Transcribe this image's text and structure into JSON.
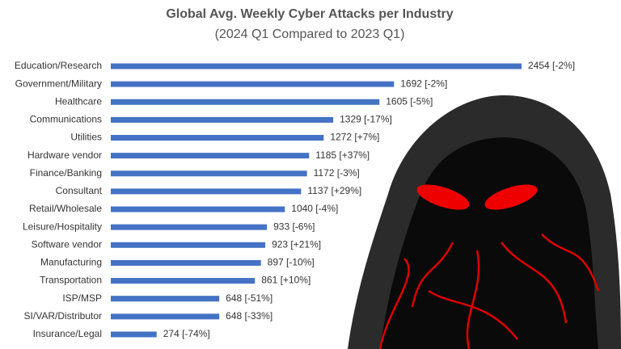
{
  "chart_data": {
    "type": "bar",
    "orientation": "horizontal",
    "title": "Global Avg. Weekly Cyber Attacks per Industry",
    "subtitle": "(2024 Q1 Compared to 2023 Q1)",
    "categories": [
      "Education/Research",
      "Government/Military",
      "Healthcare",
      "Communications",
      "Utilities",
      "Hardware vendor",
      "Finance/Banking",
      "Consultant",
      "Retail/Wholesale",
      "Leisure/Hospitality",
      "Software vendor",
      "Manufacturing",
      "Transportation",
      "ISP/MSP",
      "SI/VAR/Distributor",
      "Insurance/Legal"
    ],
    "values": [
      2454,
      1692,
      1605,
      1329,
      1272,
      1185,
      1172,
      1137,
      1040,
      933,
      923,
      897,
      861,
      648,
      648,
      274
    ],
    "value_labels": [
      "2454 [-2%]",
      "1692 [-2%]",
      "1605 [-5%]",
      "1329 [-17%]",
      "1272 [+7%]",
      "1185 [+37%]",
      "1172 [-3%]",
      "1137 [+29%]",
      "1040 [-4%]",
      "933 [-6%]",
      "923 [+21%]",
      "897 [-10%]",
      "861 [+10%]",
      "648 [-51%]",
      "648 [-33%]",
      "274 [-74%]"
    ],
    "color": "#4472c4"
  }
}
